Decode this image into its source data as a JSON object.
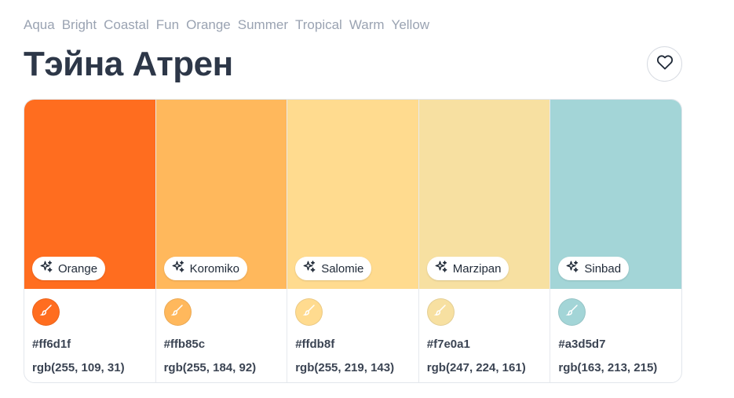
{
  "tags": [
    "Aqua",
    "Bright",
    "Coastal",
    "Fun",
    "Orange",
    "Summer",
    "Tropical",
    "Warm",
    "Yellow"
  ],
  "title": "Тэйна Атрен",
  "icons": {
    "favorite": "heart-icon",
    "name_pill": "sparkles-icon",
    "swatch_dot": "paint-brush-icon"
  },
  "colors": [
    {
      "name": "Orange",
      "hex": "#ff6d1f",
      "rgb": "rgb(255, 109, 31)"
    },
    {
      "name": "Koromiko",
      "hex": "#ffb85c",
      "rgb": "rgb(255, 184, 92)"
    },
    {
      "name": "Salomie",
      "hex": "#ffdb8f",
      "rgb": "rgb(255, 219, 143)"
    },
    {
      "name": "Marzipan",
      "hex": "#f7e0a1",
      "rgb": "rgb(247, 224, 161)"
    },
    {
      "name": "Sinbad",
      "hex": "#a3d5d7",
      "rgb": "rgb(163, 213, 215)"
    }
  ]
}
